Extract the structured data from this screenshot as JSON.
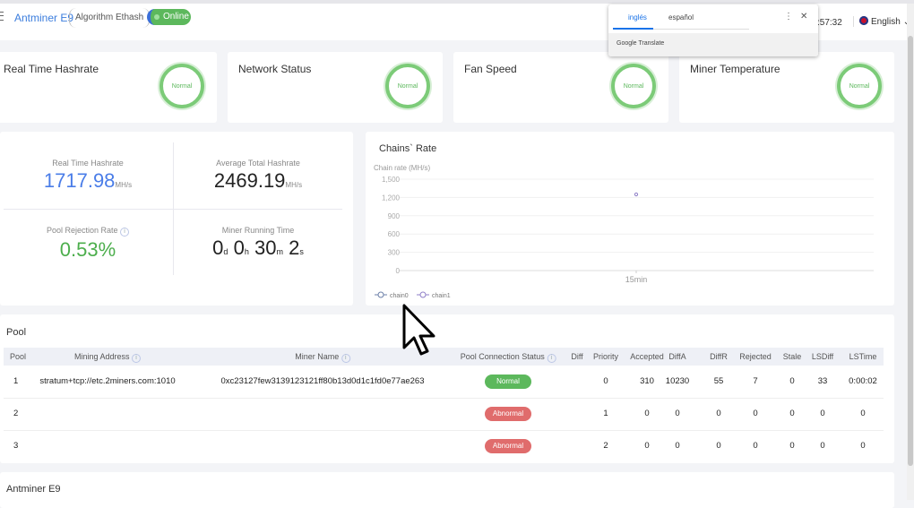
{
  "header": {
    "title": "Antminer E9",
    "algorithm": "Algorithm Ethash",
    "status": "Online",
    "time": ":57:32",
    "language": "English"
  },
  "translate_popup": {
    "tabs": [
      "inglés",
      "español"
    ],
    "active_tab": "inglés",
    "footer": "Google Translate"
  },
  "status_cards": [
    {
      "title": "Real Time Hashrate",
      "state": "Normal"
    },
    {
      "title": "Network Status",
      "state": "Normal"
    },
    {
      "title": "Fan Speed",
      "state": "Normal"
    },
    {
      "title": "Miner Temperature",
      "state": "Normal"
    }
  ],
  "stats": {
    "realtime": {
      "label": "Real Time Hashrate",
      "value": "1717.98",
      "unit": "MH/s"
    },
    "average": {
      "label": "Average Total Hashrate",
      "value": "2469.19",
      "unit": "MH/s"
    },
    "rejection": {
      "label": "Pool Rejection Rate",
      "value": "0.53%"
    },
    "runtime": {
      "label": "Miner Running Time",
      "d": "0",
      "d_unit": "d",
      "h": "0",
      "h_unit": "h",
      "m": "30",
      "m_unit": "m",
      "s": "2",
      "s_unit": "s"
    }
  },
  "chart_data": {
    "type": "line",
    "title": "Chains` Rate",
    "ylabel": "Chain rate (MH/s)",
    "ylim": [
      0,
      1500
    ],
    "yticks": [
      "1,500",
      "1,200",
      "900",
      "600",
      "300",
      "0"
    ],
    "categories": [
      "15min"
    ],
    "series": [
      {
        "name": "chain0",
        "values": [
          null
        ]
      },
      {
        "name": "chain1",
        "values": [
          1250
        ]
      }
    ],
    "colors": {
      "chain0": "#6b7fa8",
      "chain1": "#8f7fc8"
    },
    "grid": true,
    "legend": "bottom-left"
  },
  "pool": {
    "title": "Pool",
    "columns": [
      "Pool",
      "Mining Address",
      "Miner Name",
      "Pool Connection Status",
      "Diff",
      "Priority",
      "Accepted",
      "DiffA",
      "DiffR",
      "Rejected",
      "Stale",
      "LSDiff",
      "LSTime"
    ],
    "rows": [
      [
        "1",
        "stratum+tcp://etc.2miners.com:1010",
        "0xc23127few3139123121ff80b13d0d1c1fd0e77ae263",
        "Normal",
        "",
        "0",
        "310",
        "10230",
        "55",
        "7",
        "0",
        "33",
        "0:00:02"
      ],
      [
        "2",
        "",
        "",
        "Abnormal",
        "",
        "1",
        "0",
        "0",
        "0",
        "0",
        "0",
        "0",
        "0"
      ],
      [
        "3",
        "",
        "",
        "Abnormal",
        "",
        "2",
        "0",
        "0",
        "0",
        "0",
        "0",
        "0",
        "0"
      ]
    ]
  },
  "bottom": {
    "title": "Antminer E9"
  },
  "colors": {
    "normal": "#5cb85c",
    "abnormal": "#e06c6c",
    "accent": "#4a7de8"
  }
}
